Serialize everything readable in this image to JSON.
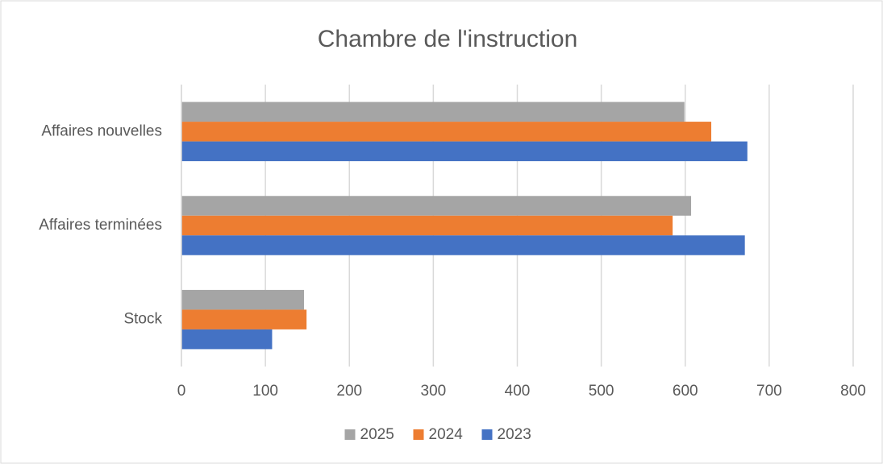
{
  "chart_data": {
    "type": "bar",
    "orientation": "horizontal",
    "title": "Chambre de l'instruction",
    "categories": [
      "Affaires nouvelles",
      "Affaires terminées",
      "Stock"
    ],
    "series": [
      {
        "name": "2025",
        "color": "#a5a5a5",
        "values": [
          599,
          607,
          146
        ]
      },
      {
        "name": "2024",
        "color": "#ed7d31",
        "values": [
          631,
          585,
          149
        ]
      },
      {
        "name": "2023",
        "color": "#4472c4",
        "values": [
          674,
          671,
          108
        ]
      }
    ],
    "xlim": [
      0,
      800
    ],
    "xticks": [
      0,
      100,
      200,
      300,
      400,
      500,
      600,
      700,
      800
    ],
    "grid": true,
    "legend": "bottom"
  }
}
